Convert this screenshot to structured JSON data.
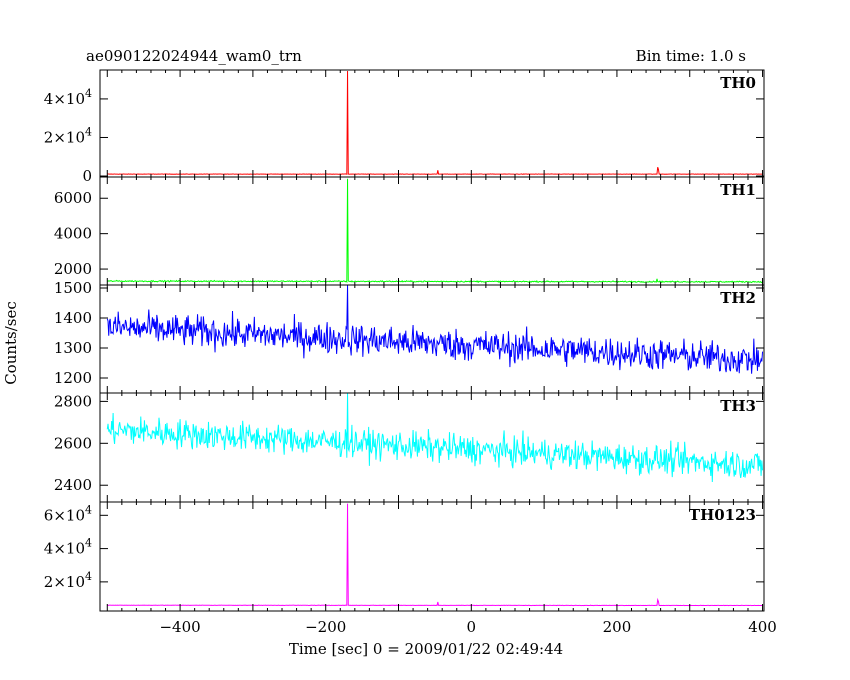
{
  "chart_data": {
    "type": "line",
    "title": "ae090122024944_wam0_trn",
    "bin_time": "Bin time: 1.0 s",
    "xlabel": "Time [sec] 0 = 2009/01/22 02:49:44",
    "ylabel": "Counts/sec",
    "xlim": [
      -510,
      402
    ],
    "x_ticks": [
      "−400",
      "−200",
      "0",
      "200",
      "400"
    ],
    "x_tick_values": [
      -400,
      -200,
      0,
      200,
      400
    ],
    "grid": false,
    "panels": [
      {
        "name": "TH0",
        "color": "#ff0000",
        "ylim": [
          -500,
          55000
        ],
        "y_ticks": [
          {
            "value": 0,
            "mant": "0",
            "exp": ""
          },
          {
            "value": 20000,
            "mant": "2×10",
            "exp": "4"
          },
          {
            "value": 40000,
            "mant": "4×10",
            "exp": "4"
          }
        ],
        "baseline": 1000,
        "noise": 60,
        "trend": 0,
        "spikes": [
          [
            -170,
            54500
          ],
          [
            -46,
            3000
          ],
          [
            256,
            4600
          ],
          [
            257,
            3500
          ]
        ]
      },
      {
        "name": "TH1",
        "color": "#00ff00",
        "ylim": [
          1100,
          7200
        ],
        "y_ticks": [
          {
            "value": 2000,
            "mant": "2000",
            "exp": ""
          },
          {
            "value": 4000,
            "mant": "4000",
            "exp": ""
          },
          {
            "value": 6000,
            "mant": "6000",
            "exp": ""
          }
        ],
        "baseline": 1300,
        "noise": 25,
        "trend": -40,
        "spikes": [
          [
            -170,
            7100
          ],
          [
            255,
            1450
          ]
        ]
      },
      {
        "name": "TH2",
        "color": "#0000ff",
        "ylim": [
          1150,
          1510
        ],
        "y_ticks": [
          {
            "value": 1200,
            "mant": "1200",
            "exp": ""
          },
          {
            "value": 1300,
            "mant": "1300",
            "exp": ""
          },
          {
            "value": 1400,
            "mant": "1400",
            "exp": ""
          },
          {
            "value": 1500,
            "mant": "1500",
            "exp": ""
          }
        ],
        "baseline": 1315,
        "noise": 38,
        "trend": -110,
        "spikes": [
          [
            -170,
            1510
          ]
        ]
      },
      {
        "name": "TH3",
        "color": "#00ffff",
        "ylim": [
          2320,
          2840
        ],
        "y_ticks": [
          {
            "value": 2400,
            "mant": "2400",
            "exp": ""
          },
          {
            "value": 2600,
            "mant": "2600",
            "exp": ""
          },
          {
            "value": 2800,
            "mant": "2800",
            "exp": ""
          }
        ],
        "baseline": 2580,
        "noise": 50,
        "trend": -170,
        "spikes": [
          [
            -170,
            2840
          ]
        ]
      },
      {
        "name": "TH0123",
        "color": "#ff00ff",
        "ylim": [
          2500,
          68000
        ],
        "y_ticks": [
          {
            "value": 20000,
            "mant": "2×10",
            "exp": "4"
          },
          {
            "value": 40000,
            "mant": "4×10",
            "exp": "4"
          },
          {
            "value": 60000,
            "mant": "6×10",
            "exp": "4"
          }
        ],
        "baseline": 5900,
        "noise": 70,
        "trend": -150,
        "spikes": [
          [
            -170,
            67000
          ],
          [
            -46,
            7900
          ],
          [
            256,
            9300
          ],
          [
            257,
            8200
          ]
        ]
      }
    ]
  }
}
